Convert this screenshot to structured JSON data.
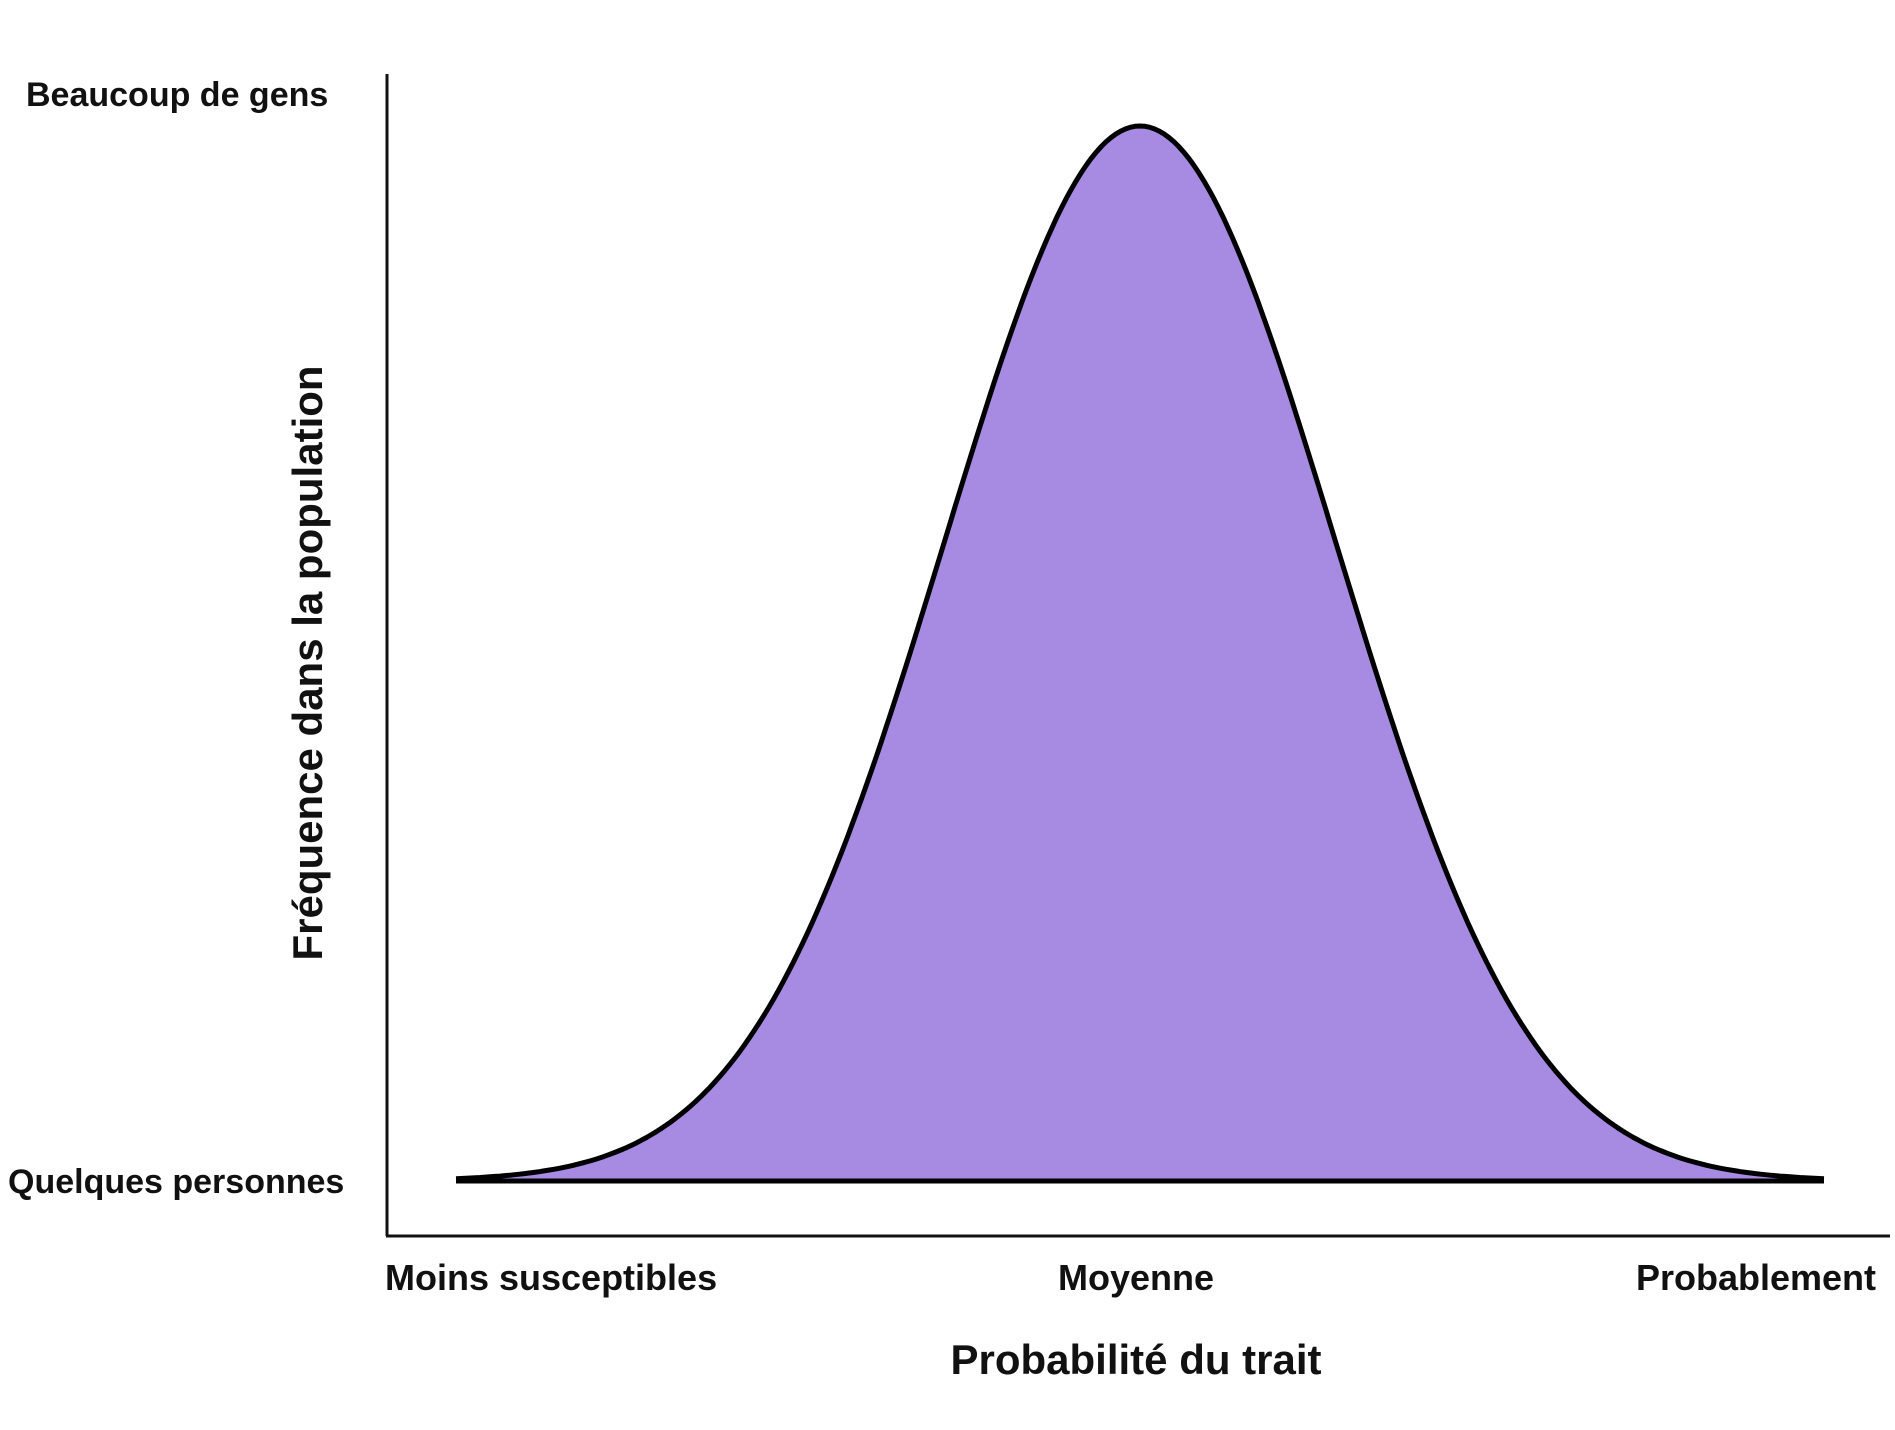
{
  "chart_data": {
    "type": "area",
    "title": "",
    "xlabel": "Probabilité du trait",
    "ylabel": "Fréquence dans la population",
    "x_tick_labels": {
      "left": "Moins susceptibles",
      "center": "Moyenne",
      "right": "Probablement"
    },
    "y_tick_labels": {
      "top": "Beaucoup de gens",
      "bottom": "Quelques personnes"
    },
    "distribution": "normal",
    "xlim": [
      -3.5,
      3.5
    ],
    "mean": 0,
    "sd": 1,
    "grid": false,
    "legend": "none",
    "fill_color": "#A78BE2",
    "stroke_color": "#000000"
  }
}
